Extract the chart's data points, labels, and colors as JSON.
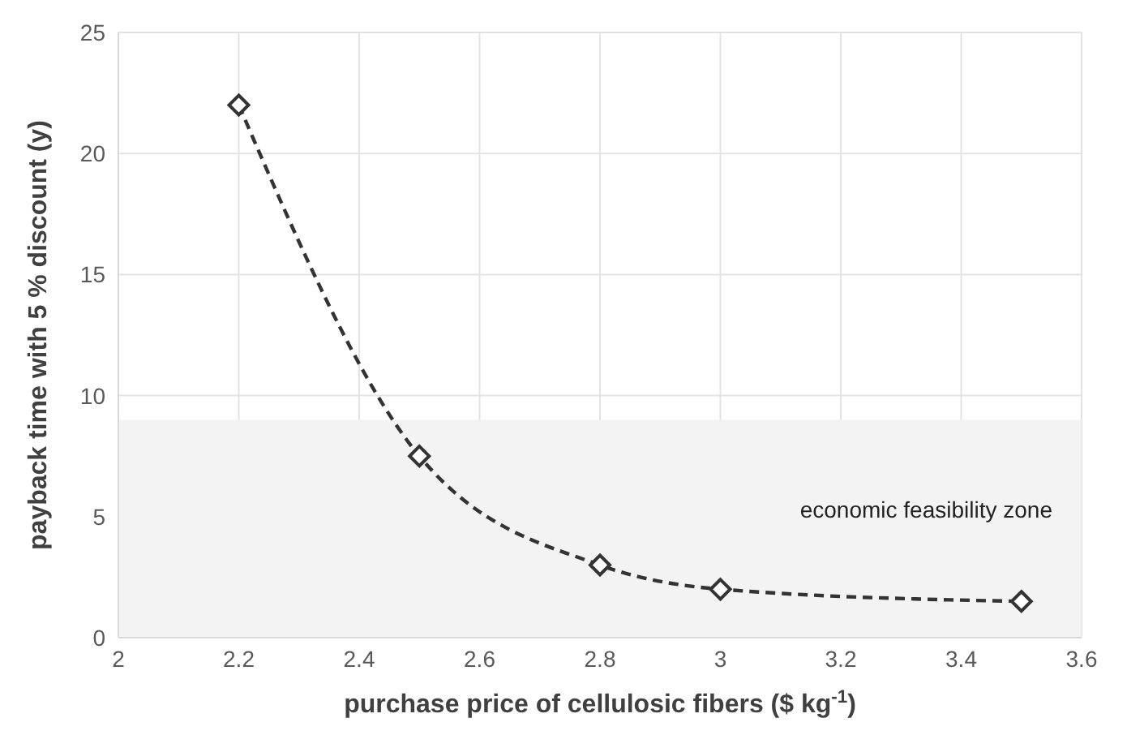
{
  "chart_data": {
    "type": "line",
    "xlabel": "purchase price of cellulosic fibers ($ kg$^{-1}$)",
    "ylabel": "payback time with 5 % discount (y)",
    "x": [
      2.2,
      2.5,
      2.8,
      3,
      3.5
    ],
    "series": [
      {
        "color": "#333333",
        "values": [
          22,
          7.5,
          3,
          2,
          1.5
        ]
      }
    ],
    "xlim": [
      2,
      3.6
    ],
    "xticks": [
      2,
      2.2,
      2.4,
      2.6,
      2.8,
      3,
      3.2,
      3.4,
      3.6
    ],
    "ylim": [
      0,
      25
    ],
    "yticks": [
      0,
      5,
      10,
      15,
      20,
      25
    ],
    "bands": [
      {
        "axis": "y",
        "from": 0,
        "to": 9,
        "label": "economic feasibility zone",
        "color": "#f3f3f3"
      }
    ],
    "grid": true,
    "marker": "diamond",
    "line_style": "dashed"
  }
}
